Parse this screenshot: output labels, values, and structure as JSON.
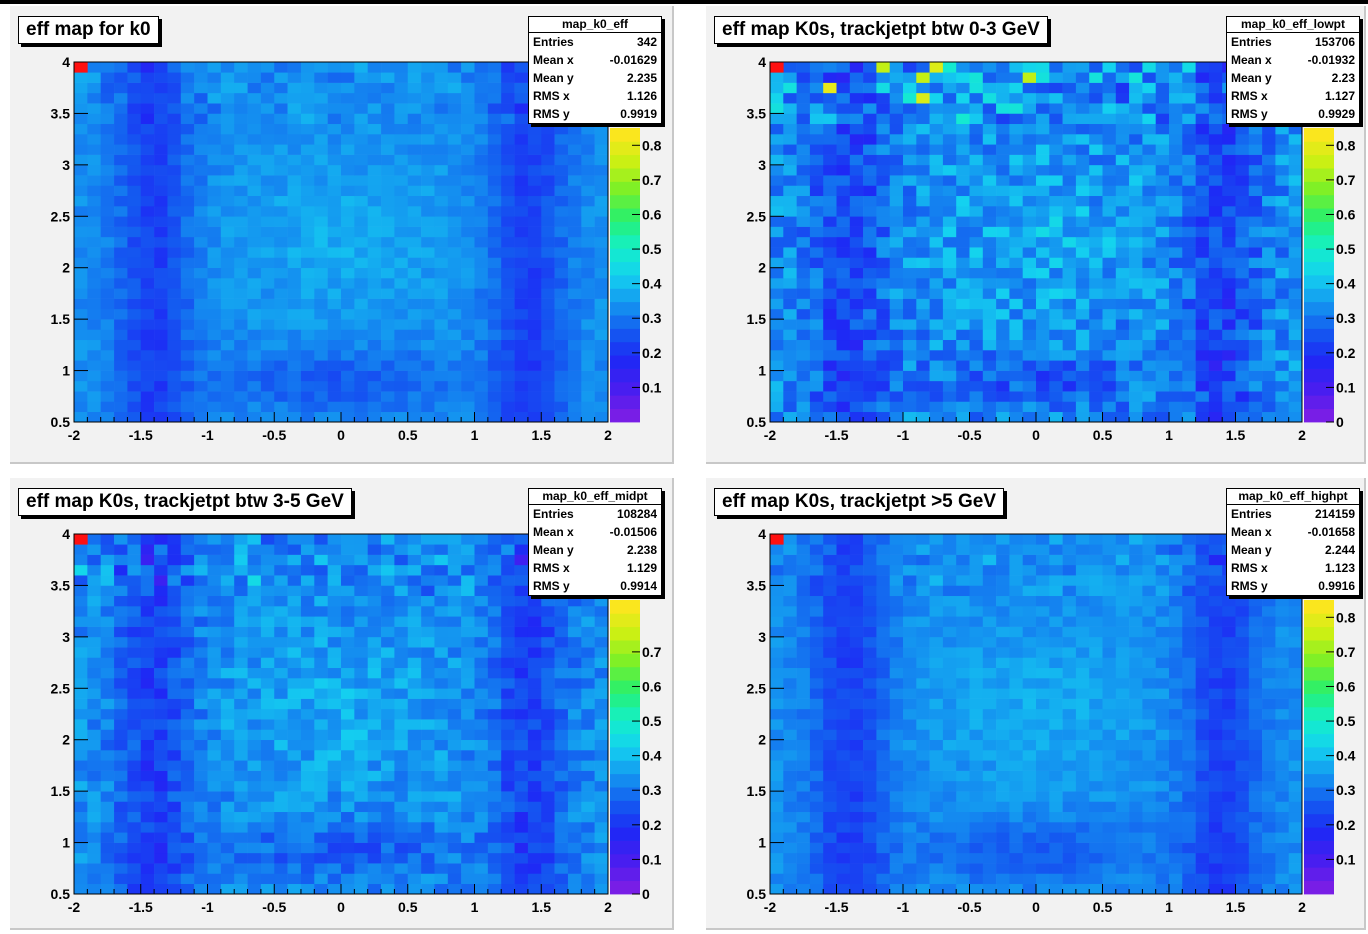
{
  "chart_data": [
    {
      "type": "heatmap",
      "title": "eff map for k0",
      "x_range": [
        -2,
        2
      ],
      "y_range": [
        0.5,
        4
      ],
      "x_ticks": [
        "-2",
        "-1.5",
        "-1",
        "-0.5",
        "0",
        "0.5",
        "1",
        "1.5",
        "2"
      ],
      "y_ticks": [
        "0.5",
        "1",
        "1.5",
        "2",
        "2.5",
        "3",
        "3.5",
        "4"
      ],
      "z_ticks": [
        "0.1",
        "0.2",
        "0.3",
        "0.4",
        "0.5",
        "0.6",
        "0.7",
        "0.8"
      ],
      "stats": {
        "name": "map_k0_eff",
        "rows": [
          {
            "label": "Entries",
            "value": "342"
          },
          {
            "label": "Mean x",
            "value": "-0.01629"
          },
          {
            "label": "Mean y",
            "value": "2.235"
          },
          {
            "label": "RMS x",
            "value": "1.126"
          },
          {
            "label": "RMS y",
            "value": "0.9919"
          }
        ]
      },
      "pattern": "smooth"
    },
    {
      "type": "heatmap",
      "title": "eff map K0s, trackjetpt btw 0-3 GeV",
      "x_range": [
        -2,
        2
      ],
      "y_range": [
        0.5,
        4
      ],
      "x_ticks": [
        "-2",
        "-1.5",
        "-1",
        "-0.5",
        "0",
        "0.5",
        "1",
        "1.5",
        "2"
      ],
      "y_ticks": [
        "0.5",
        "1",
        "1.5",
        "2",
        "2.5",
        "3",
        "3.5",
        "4"
      ],
      "z_ticks": [
        "0",
        "0.1",
        "0.2",
        "0.3",
        "0.4",
        "0.5",
        "0.6",
        "0.7",
        "0.8"
      ],
      "stats": {
        "name": "map_k0_eff_lowpt",
        "rows": [
          {
            "label": "Entries",
            "value": "153706"
          },
          {
            "label": "Mean x",
            "value": "-0.01932"
          },
          {
            "label": "Mean y",
            "value": "2.23"
          },
          {
            "label": "RMS x",
            "value": "1.127"
          },
          {
            "label": "RMS y",
            "value": "0.9929"
          }
        ]
      },
      "pattern": "noisy"
    },
    {
      "type": "heatmap",
      "title": "eff map K0s, trackjetpt btw 3-5 GeV",
      "x_range": [
        -2,
        2
      ],
      "y_range": [
        0.5,
        4
      ],
      "x_ticks": [
        "-2",
        "-1.5",
        "-1",
        "-0.5",
        "0",
        "0.5",
        "1",
        "1.5",
        "2"
      ],
      "y_ticks": [
        "0.5",
        "1",
        "1.5",
        "2",
        "2.5",
        "3",
        "3.5",
        "4"
      ],
      "z_ticks": [
        "0",
        "0.1",
        "0.2",
        "0.3",
        "0.4",
        "0.5",
        "0.6",
        "0.7"
      ],
      "stats": {
        "name": "map_k0_eff_midpt",
        "rows": [
          {
            "label": "Entries",
            "value": "108284"
          },
          {
            "label": "Mean x",
            "value": "-0.01506"
          },
          {
            "label": "Mean y",
            "value": "2.238"
          },
          {
            "label": "RMS x",
            "value": "1.129"
          },
          {
            "label": "RMS y",
            "value": "0.9914"
          }
        ]
      },
      "pattern": "medium"
    },
    {
      "type": "heatmap",
      "title": "eff map K0s, trackjetpt >5 GeV",
      "x_range": [
        -2,
        2
      ],
      "y_range": [
        0.5,
        4
      ],
      "x_ticks": [
        "-2",
        "-1.5",
        "-1",
        "-0.5",
        "0",
        "0.5",
        "1",
        "1.5",
        "2"
      ],
      "y_ticks": [
        "0.5",
        "1",
        "1.5",
        "2",
        "2.5",
        "3",
        "3.5",
        "4"
      ],
      "z_ticks": [
        "0.1",
        "0.2",
        "0.3",
        "0.4",
        "0.5",
        "0.6",
        "0.7",
        "0.8"
      ],
      "stats": {
        "name": "map_k0_eff_highpt",
        "rows": [
          {
            "label": "Entries",
            "value": "214159"
          },
          {
            "label": "Mean x",
            "value": "-0.01658"
          },
          {
            "label": "Mean y",
            "value": "2.244"
          },
          {
            "label": "RMS x",
            "value": "1.123"
          },
          {
            "label": "RMS y",
            "value": "0.9916"
          }
        ]
      },
      "pattern": "smooth"
    }
  ]
}
